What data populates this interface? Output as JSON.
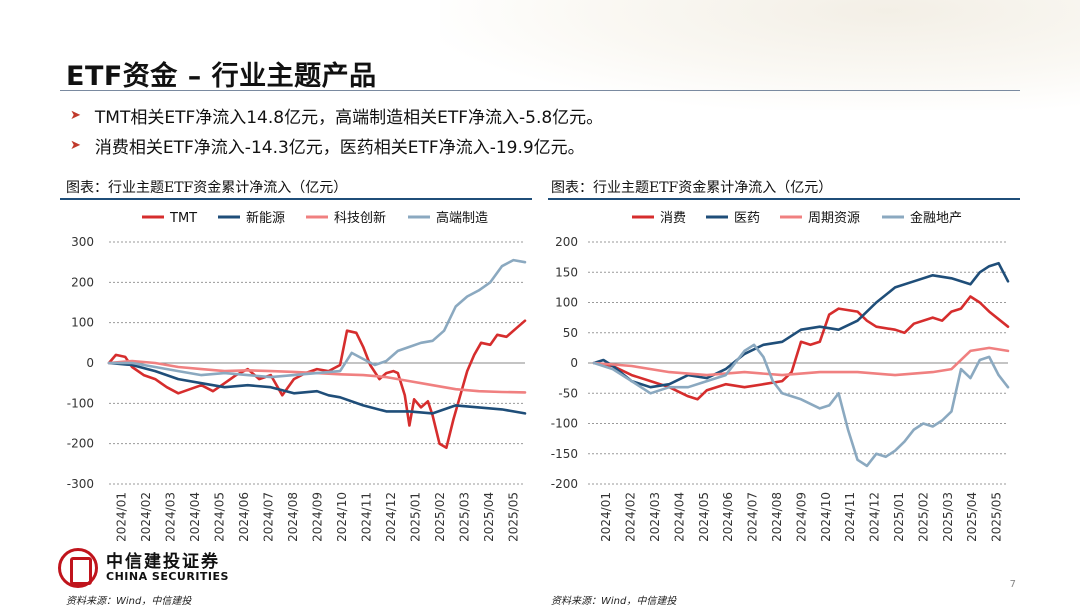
{
  "slide": {
    "title": "ETF资金 – 行业主题产品",
    "bullets": [
      "TMT相关ETF净流入14.8亿元，高端制造相关ETF净流入-5.8亿元。",
      "消费相关ETF净流入-14.3亿元，医药相关ETF净流入-19.9亿元。"
    ],
    "bullet_icon": "arrow-right-icon",
    "source_left": "资料来源：Wind，中信建投",
    "source_right": "资料来源：Wind，中信建投",
    "page_number": "7",
    "logo_cn": "中信建投证券",
    "logo_en": "CHINA SECURITIES"
  },
  "chart_data": [
    {
      "type": "line",
      "title": "图表：行业主题ETF资金累计净流入（亿元）",
      "x_ticks": [
        "2024/01",
        "2024/02",
        "2024/03",
        "2024/04",
        "2024/05",
        "2024/06",
        "2024/07",
        "2024/08",
        "2024/09",
        "2024/10",
        "2024/11",
        "2024/12",
        "2025/01",
        "2025/02",
        "2025/03",
        "2025/04",
        "2025/05"
      ],
      "ylim": [
        -300,
        300
      ],
      "y_ticks": [
        300,
        200,
        100,
        0,
        -100,
        -200,
        -300
      ],
      "grid": true,
      "legend": "top",
      "series": [
        {
          "name": "TMT",
          "color": "#d62d2d",
          "values": [
            [
              0,
              0
            ],
            [
              0.3,
              20
            ],
            [
              0.7,
              15
            ],
            [
              1,
              -10
            ],
            [
              1.5,
              -30
            ],
            [
              2,
              -40
            ],
            [
              2.5,
              -60
            ],
            [
              3,
              -75
            ],
            [
              3.5,
              -65
            ],
            [
              4,
              -55
            ],
            [
              4.5,
              -70
            ],
            [
              5,
              -50
            ],
            [
              5.5,
              -30
            ],
            [
              6,
              -15
            ],
            [
              6.5,
              -40
            ],
            [
              7,
              -30
            ],
            [
              7.5,
              -80
            ],
            [
              8,
              -40
            ],
            [
              8.5,
              -25
            ],
            [
              9,
              -15
            ],
            [
              9.5,
              -20
            ],
            [
              10,
              -5
            ],
            [
              10.3,
              80
            ],
            [
              10.7,
              75
            ],
            [
              11,
              40
            ],
            [
              11.3,
              -5
            ],
            [
              11.7,
              -40
            ],
            [
              12,
              -25
            ],
            [
              12.3,
              -20
            ],
            [
              12.5,
              -25
            ],
            [
              12.8,
              -80
            ],
            [
              13,
              -155
            ],
            [
              13.2,
              -90
            ],
            [
              13.5,
              -110
            ],
            [
              13.8,
              -95
            ],
            [
              14.0,
              -130
            ],
            [
              14.3,
              -200
            ],
            [
              14.6,
              -210
            ],
            [
              14.9,
              -140
            ],
            [
              15.2,
              -80
            ],
            [
              15.5,
              -20
            ],
            [
              15.8,
              20
            ],
            [
              16.1,
              50
            ],
            [
              16.5,
              45
            ],
            [
              16.8,
              70
            ],
            [
              17.2,
              65
            ],
            [
              17.6,
              85
            ],
            [
              18,
              105
            ]
          ]
        },
        {
          "name": "新能源",
          "color": "#1f4e79",
          "values": [
            [
              0,
              0
            ],
            [
              1,
              -5
            ],
            [
              2,
              -20
            ],
            [
              3,
              -40
            ],
            [
              4,
              -50
            ],
            [
              5,
              -60
            ],
            [
              6,
              -55
            ],
            [
              7,
              -60
            ],
            [
              8,
              -75
            ],
            [
              9,
              -70
            ],
            [
              9.5,
              -80
            ],
            [
              10,
              -85
            ],
            [
              11,
              -105
            ],
            [
              12,
              -120
            ],
            [
              13,
              -120
            ],
            [
              14,
              -125
            ],
            [
              15,
              -105
            ],
            [
              16,
              -110
            ],
            [
              17,
              -115
            ],
            [
              18,
              -125
            ]
          ]
        },
        {
          "name": "科技创新",
          "color": "#f08080",
          "values": [
            [
              0,
              0
            ],
            [
              1,
              5
            ],
            [
              2,
              0
            ],
            [
              3,
              -10
            ],
            [
              4,
              -15
            ],
            [
              5,
              -20
            ],
            [
              6,
              -18
            ],
            [
              7,
              -20
            ],
            [
              8,
              -22
            ],
            [
              9,
              -25
            ],
            [
              10,
              -28
            ],
            [
              11,
              -30
            ],
            [
              12,
              -35
            ],
            [
              13,
              -45
            ],
            [
              14,
              -55
            ],
            [
              15,
              -65
            ],
            [
              16,
              -70
            ],
            [
              17,
              -72
            ],
            [
              18,
              -73
            ]
          ]
        },
        {
          "name": "高端制造",
          "color": "#8ba9c0",
          "values": [
            [
              0,
              0
            ],
            [
              1,
              0
            ],
            [
              2,
              -10
            ],
            [
              3,
              -20
            ],
            [
              4,
              -30
            ],
            [
              5,
              -25
            ],
            [
              6,
              -30
            ],
            [
              7,
              -35
            ],
            [
              8,
              -30
            ],
            [
              9,
              -25
            ],
            [
              10,
              -20
            ],
            [
              10.5,
              25
            ],
            [
              11,
              10
            ],
            [
              11.5,
              -5
            ],
            [
              12,
              5
            ],
            [
              12.5,
              30
            ],
            [
              13,
              40
            ],
            [
              13.5,
              50
            ],
            [
              14,
              55
            ],
            [
              14.5,
              80
            ],
            [
              15,
              140
            ],
            [
              15.5,
              165
            ],
            [
              16,
              180
            ],
            [
              16.5,
              200
            ],
            [
              17,
              240
            ],
            [
              17.5,
              255
            ],
            [
              18,
              250
            ]
          ]
        }
      ]
    },
    {
      "type": "line",
      "title": "图表：行业主题ETF资金累计净流入（亿元）",
      "x_ticks": [
        "2024/01",
        "2024/02",
        "2024/03",
        "2024/04",
        "2024/05",
        "2024/06",
        "2024/07",
        "2024/08",
        "2024/09",
        "2024/10",
        "2024/11",
        "2024/12",
        "2025/01",
        "2025/02",
        "2025/03",
        "2025/04",
        "2025/05"
      ],
      "ylim": [
        -200,
        200
      ],
      "y_ticks": [
        200,
        150,
        100,
        50,
        0,
        -50,
        -100,
        -150,
        -200
      ],
      "grid": true,
      "legend": "top",
      "series": [
        {
          "name": "消费",
          "color": "#d62d2d",
          "values": [
            [
              0,
              0
            ],
            [
              1,
              -5
            ],
            [
              2,
              -20
            ],
            [
              3,
              -30
            ],
            [
              4,
              -40
            ],
            [
              5,
              -55
            ],
            [
              5.5,
              -60
            ],
            [
              6,
              -45
            ],
            [
              7,
              -35
            ],
            [
              8,
              -40
            ],
            [
              9,
              -35
            ],
            [
              10,
              -30
            ],
            [
              10.5,
              -15
            ],
            [
              11,
              35
            ],
            [
              11.5,
              30
            ],
            [
              12,
              35
            ],
            [
              12.5,
              80
            ],
            [
              13,
              90
            ],
            [
              14,
              85
            ],
            [
              14.5,
              70
            ],
            [
              15,
              60
            ],
            [
              16,
              55
            ],
            [
              16.5,
              50
            ],
            [
              17,
              65
            ],
            [
              18,
              75
            ],
            [
              18.5,
              70
            ],
            [
              19,
              85
            ],
            [
              19.5,
              90
            ],
            [
              20,
              110
            ],
            [
              20.5,
              100
            ],
            [
              21,
              85
            ],
            [
              22,
              60
            ]
          ]
        },
        {
          "name": "医药",
          "color": "#1f4e79",
          "values": [
            [
              0,
              0
            ],
            [
              0.5,
              5
            ],
            [
              1,
              -5
            ],
            [
              2,
              -30
            ],
            [
              3,
              -40
            ],
            [
              4,
              -35
            ],
            [
              5,
              -20
            ],
            [
              6,
              -25
            ],
            [
              7,
              -10
            ],
            [
              8,
              15
            ],
            [
              9,
              30
            ],
            [
              10,
              35
            ],
            [
              11,
              55
            ],
            [
              12,
              60
            ],
            [
              13,
              55
            ],
            [
              14,
              70
            ],
            [
              15,
              100
            ],
            [
              16,
              125
            ],
            [
              17,
              135
            ],
            [
              18,
              145
            ],
            [
              19,
              140
            ],
            [
              20,
              130
            ],
            [
              20.5,
              150
            ],
            [
              21,
              160
            ],
            [
              21.5,
              165
            ],
            [
              22,
              135
            ]
          ]
        },
        {
          "name": "周期资源",
          "color": "#f08080",
          "values": [
            [
              0,
              0
            ],
            [
              2,
              -5
            ],
            [
              4,
              -15
            ],
            [
              6,
              -20
            ],
            [
              8,
              -15
            ],
            [
              10,
              -20
            ],
            [
              12,
              -15
            ],
            [
              14,
              -15
            ],
            [
              16,
              -20
            ],
            [
              18,
              -15
            ],
            [
              19,
              -10
            ],
            [
              20,
              20
            ],
            [
              21,
              25
            ],
            [
              22,
              20
            ]
          ]
        },
        {
          "name": "金融地产",
          "color": "#8ba9c0",
          "values": [
            [
              0,
              0
            ],
            [
              1,
              -10
            ],
            [
              2,
              -30
            ],
            [
              3,
              -50
            ],
            [
              4,
              -40
            ],
            [
              5,
              -40
            ],
            [
              6,
              -30
            ],
            [
              7,
              -20
            ],
            [
              8,
              20
            ],
            [
              8.5,
              30
            ],
            [
              9,
              10
            ],
            [
              9.5,
              -30
            ],
            [
              10,
              -50
            ],
            [
              11,
              -60
            ],
            [
              12,
              -75
            ],
            [
              12.5,
              -70
            ],
            [
              13,
              -50
            ],
            [
              13.5,
              -110
            ],
            [
              14,
              -160
            ],
            [
              14.5,
              -170
            ],
            [
              15,
              -150
            ],
            [
              15.5,
              -155
            ],
            [
              16,
              -145
            ],
            [
              16.5,
              -130
            ],
            [
              17,
              -110
            ],
            [
              17.5,
              -100
            ],
            [
              18,
              -105
            ],
            [
              18.5,
              -95
            ],
            [
              19,
              -80
            ],
            [
              19.5,
              -10
            ],
            [
              20,
              -25
            ],
            [
              20.5,
              5
            ],
            [
              21,
              10
            ],
            [
              21.5,
              -20
            ],
            [
              22,
              -40
            ]
          ]
        }
      ]
    }
  ]
}
